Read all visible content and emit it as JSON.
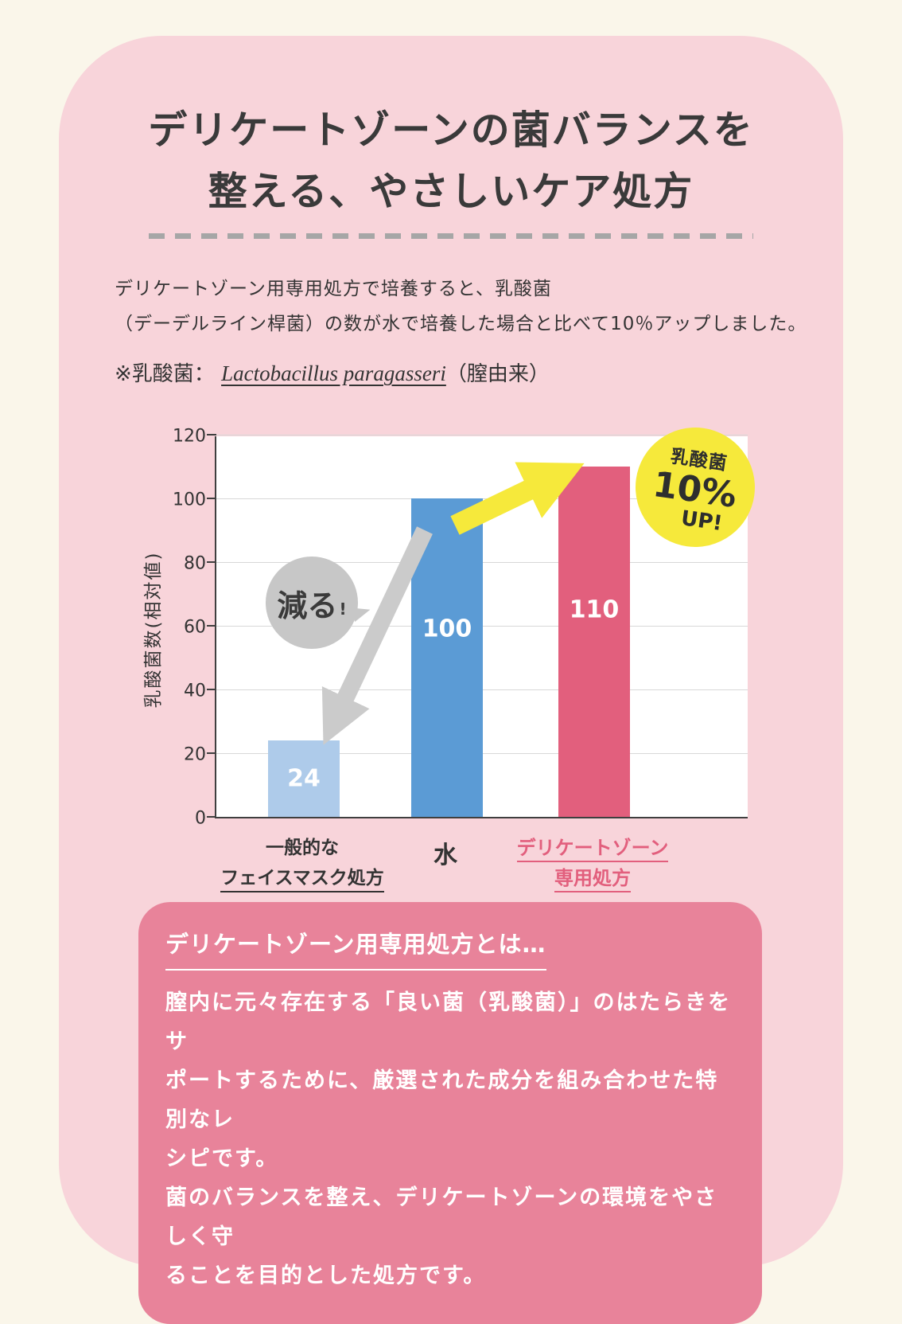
{
  "colors": {
    "page_bg": "#FAF6EA",
    "card_bg": "#F8D4DA",
    "footer_bg": "#E8839A",
    "accent_pink": "#E25F7D",
    "bar_blue": "#5B9BD5",
    "bar_light_blue": "#AECBEA",
    "annotation_yellow": "#F6E93B",
    "annotation_gray": "#C7C7C7"
  },
  "header": {
    "title_line1": "デリケートゾーンの菌バランスを",
    "title_line2": "整える、やさしいケア処方"
  },
  "intro": {
    "line1": "デリケートゾーン用専用処方で培養すると、乳酸菌",
    "line2": "（デーデルライン桿菌）の数が水で培養した場合と比べて10％アップしました。",
    "note_prefix": "※乳酸菌：",
    "note_species": "Lactobacillus paragasseri",
    "note_suffix": "（膣由来）"
  },
  "chart_data": {
    "type": "bar",
    "categories": [
      "一般的な\nフェイスマスク処方",
      "水",
      "デリケートゾーン\n専用処方"
    ],
    "values": [
      24,
      100,
      110
    ],
    "bar_colors": [
      "#AECBEA",
      "#5B9BD5",
      "#E25F7D"
    ],
    "title": "",
    "xlabel": "",
    "ylabel": "乳酸菌数(相対値)",
    "ylim": [
      0,
      120
    ],
    "yticks": [
      0,
      20,
      40,
      60,
      80,
      100,
      120
    ],
    "grid": true,
    "legend": false,
    "annotations": {
      "decrease_label": "減る",
      "decrease_mark": "!",
      "increase_badge": [
        "乳酸菌",
        "10%",
        "UP!"
      ]
    }
  },
  "footer_box": {
    "title": "デリケートゾーン用専用処方とは…",
    "body_lines": [
      "膣内に元々存在する「良い菌（乳酸菌）」のはたらきをサ",
      "ポートするために、厳選された成分を組み合わせた特別なレ",
      "シピです。",
      "菌のバランスを整え、デリケートゾーンの環境をやさしく守",
      "ることを目的とした処方です。"
    ]
  }
}
